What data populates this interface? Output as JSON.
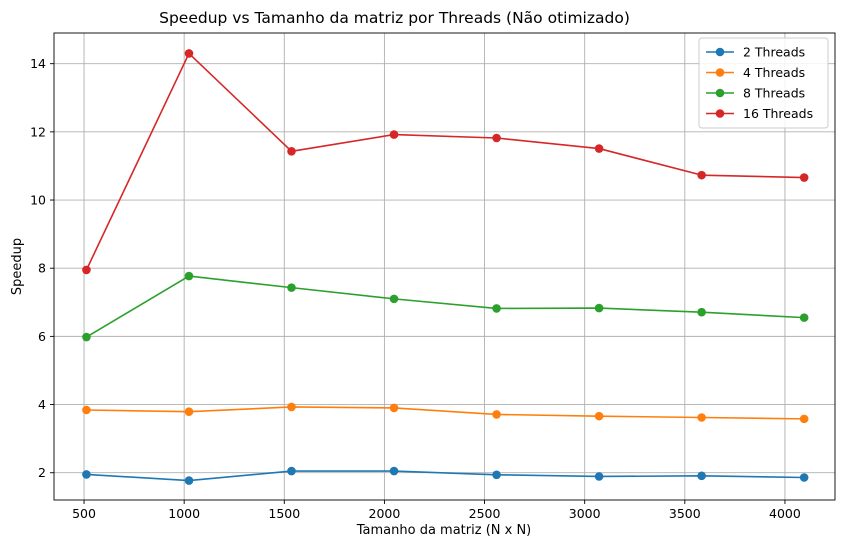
{
  "chart_data": {
    "type": "line",
    "title": "Speedup vs Tamanho da matriz por Threads (Não otimizado)",
    "xlabel": "Tamanho da matriz (N x N)",
    "ylabel": "Speedup",
    "xlim": [
      350,
      4250
    ],
    "ylim": [
      1.2,
      14.9
    ],
    "xticks": [
      500,
      1000,
      1500,
      2000,
      2500,
      3000,
      3500,
      4000
    ],
    "yticks": [
      2,
      4,
      6,
      8,
      10,
      12,
      14
    ],
    "grid": true,
    "legend_position": "top-right",
    "x": [
      512,
      1024,
      1536,
      2048,
      2560,
      3072,
      3584,
      4096
    ],
    "series": [
      {
        "name": "2 Threads",
        "color": "#1f77b4",
        "values": [
          1.95,
          1.77,
          2.05,
          2.05,
          1.94,
          1.89,
          1.91,
          1.86
        ]
      },
      {
        "name": "4 Threads",
        "color": "#ff7f0e",
        "values": [
          3.84,
          3.79,
          3.93,
          3.9,
          3.71,
          3.66,
          3.62,
          3.58
        ]
      },
      {
        "name": "8 Threads",
        "color": "#2ca02c",
        "values": [
          5.98,
          7.77,
          7.43,
          7.1,
          6.82,
          6.83,
          6.71,
          6.55
        ]
      },
      {
        "name": "16 Threads",
        "color": "#d62728",
        "values": [
          7.95,
          14.3,
          11.43,
          11.92,
          11.82,
          11.51,
          10.73,
          10.66
        ]
      }
    ]
  }
}
